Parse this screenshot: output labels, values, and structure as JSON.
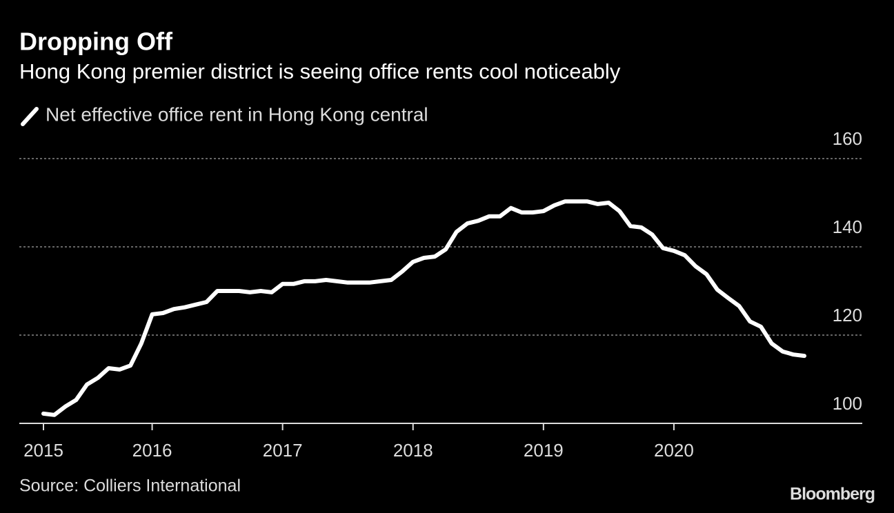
{
  "chart_data": {
    "type": "line",
    "title": "Dropping Off",
    "subtitle": "Hong Kong premier district is seeing office rents cool noticeably",
    "source": "Source: Colliers International",
    "brand": "Bloomberg",
    "categories": [
      "2015",
      null,
      null,
      null,
      null,
      null,
      null,
      null,
      null,
      null,
      "2016",
      null,
      null,
      null,
      null,
      null,
      null,
      null,
      null,
      null,
      null,
      null,
      "2017",
      null,
      null,
      null,
      null,
      null,
      null,
      null,
      null,
      null,
      null,
      null,
      "2018",
      null,
      null,
      null,
      null,
      null,
      null,
      null,
      null,
      null,
      null,
      null,
      "2019",
      null,
      null,
      null,
      null,
      null,
      null,
      null,
      null,
      null,
      null,
      null,
      "2020",
      null,
      null,
      null,
      null,
      null,
      null,
      null,
      null,
      null,
      null,
      null,
      null
    ],
    "series": [
      {
        "name": "Net effective office rent in Hong Kong central",
        "color": "#ffffff",
        "values": [
          102.2,
          101.9,
          103.8,
          105.3,
          108.8,
          110.3,
          112.5,
          112.2,
          113.1,
          118.1,
          124.7,
          125.0,
          125.9,
          126.3,
          126.9,
          127.5,
          130.0,
          130.0,
          130.0,
          129.7,
          130.0,
          129.7,
          131.6,
          131.6,
          132.2,
          132.2,
          132.5,
          132.2,
          131.9,
          131.9,
          131.9,
          132.2,
          132.5,
          134.4,
          136.6,
          137.5,
          137.8,
          139.4,
          143.4,
          145.3,
          145.9,
          146.9,
          146.9,
          148.8,
          147.8,
          147.8,
          148.1,
          149.4,
          150.3,
          150.3,
          150.3,
          149.7,
          150.0,
          148.1,
          144.7,
          144.4,
          142.8,
          139.7,
          139.1,
          138.1,
          135.6,
          133.8,
          130.3,
          128.4,
          126.6,
          123.1,
          121.9,
          118.1,
          116.3,
          115.6,
          115.3
        ]
      }
    ],
    "ylim": [
      100,
      160
    ],
    "yticks": [
      100,
      120,
      140,
      160
    ],
    "grid": true
  }
}
